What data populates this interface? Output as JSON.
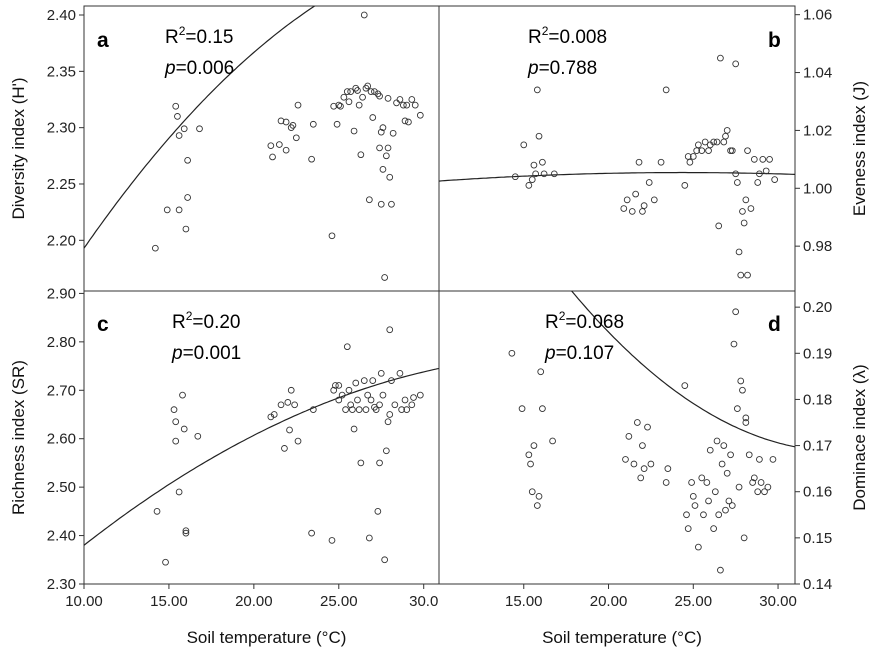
{
  "chart_data": [
    {
      "id": "a",
      "type": "scatter",
      "panel_label": "a",
      "r2_label": "R",
      "r2_sup": "2",
      "r2_value": "=0.15",
      "p_label": "p",
      "p_value": "=0.006",
      "ylabel": "Diversity index (H')",
      "xlabel": "",
      "y_side": "left",
      "xlim": [
        10,
        30.9
      ],
      "ylim": [
        2.155,
        2.408
      ],
      "xticks": [],
      "yticks": [
        {
          "v": 2.2,
          "t": "2.20"
        },
        {
          "v": 2.25,
          "t": "2.25"
        },
        {
          "v": 2.3,
          "t": "2.30"
        },
        {
          "v": 2.35,
          "t": "2.35"
        },
        {
          "v": 2.4,
          "t": "2.40"
        }
      ],
      "fit": [
        2.193,
        0.0217,
        -0.000432
      ],
      "points": [
        [
          14.2,
          2.193
        ],
        [
          14.9,
          2.227
        ],
        [
          15.4,
          2.319
        ],
        [
          15.5,
          2.31
        ],
        [
          15.6,
          2.293
        ],
        [
          15.6,
          2.227
        ],
        [
          15.9,
          2.299
        ],
        [
          16.0,
          2.21
        ],
        [
          16.1,
          2.271
        ],
        [
          16.1,
          2.238
        ],
        [
          16.8,
          2.299
        ],
        [
          21.0,
          2.284
        ],
        [
          21.1,
          2.274
        ],
        [
          21.5,
          2.285
        ],
        [
          21.6,
          2.306
        ],
        [
          21.9,
          2.28
        ],
        [
          21.9,
          2.305
        ],
        [
          22.2,
          2.3
        ],
        [
          22.3,
          2.302
        ],
        [
          22.5,
          2.291
        ],
        [
          22.6,
          2.32
        ],
        [
          23.4,
          2.272
        ],
        [
          23.5,
          2.303
        ],
        [
          24.6,
          2.204
        ],
        [
          24.7,
          2.319
        ],
        [
          24.9,
          2.303
        ],
        [
          25.0,
          2.32
        ],
        [
          25.1,
          2.319
        ],
        [
          25.3,
          2.327
        ],
        [
          25.5,
          2.332
        ],
        [
          25.6,
          2.323
        ],
        [
          25.7,
          2.332
        ],
        [
          25.9,
          2.297
        ],
        [
          26.0,
          2.335
        ],
        [
          26.1,
          2.333
        ],
        [
          26.2,
          2.32
        ],
        [
          26.3,
          2.276
        ],
        [
          26.4,
          2.327
        ],
        [
          26.5,
          2.4
        ],
        [
          26.6,
          2.335
        ],
        [
          26.7,
          2.337
        ],
        [
          26.8,
          2.236
        ],
        [
          26.9,
          2.332
        ],
        [
          27.0,
          2.309
        ],
        [
          27.1,
          2.332
        ],
        [
          27.3,
          2.33
        ],
        [
          27.4,
          2.328
        ],
        [
          27.4,
          2.282
        ],
        [
          27.5,
          2.296
        ],
        [
          27.5,
          2.232
        ],
        [
          27.6,
          2.263
        ],
        [
          27.6,
          2.3
        ],
        [
          27.7,
          2.167
        ],
        [
          27.8,
          2.275
        ],
        [
          27.9,
          2.326
        ],
        [
          27.9,
          2.282
        ],
        [
          28.0,
          2.256
        ],
        [
          28.1,
          2.232
        ],
        [
          28.2,
          2.295
        ],
        [
          28.4,
          2.322
        ],
        [
          28.6,
          2.325
        ],
        [
          28.8,
          2.32
        ],
        [
          28.9,
          2.306
        ],
        [
          29.0,
          2.32
        ],
        [
          29.1,
          2.305
        ],
        [
          29.3,
          2.325
        ],
        [
          29.5,
          2.32
        ],
        [
          29.8,
          2.311
        ]
      ]
    },
    {
      "id": "b",
      "type": "scatter",
      "panel_label": "b",
      "r2_label": "R",
      "r2_sup": "2",
      "r2_value": "=0.008",
      "p_label": "p",
      "p_value": "=0.788",
      "ylabel": "Eveness index (J)",
      "xlabel": "",
      "y_side": "right",
      "xlim": [
        10,
        31
      ],
      "ylim": [
        0.9645,
        1.063
      ],
      "xticks": [],
      "yticks": [
        {
          "v": 0.98,
          "t": "0.98"
        },
        {
          "v": 1.0,
          "t": "1.00"
        },
        {
          "v": 1.02,
          "t": "1.02"
        },
        {
          "v": 1.04,
          "t": "1.04"
        },
        {
          "v": 1.06,
          "t": "1.06"
        }
      ],
      "fit": [
        1.0025,
        0.00041,
        -1.43e-05
      ],
      "points": [
        [
          14.5,
          1.004
        ],
        [
          15.0,
          1.015
        ],
        [
          15.3,
          1.001
        ],
        [
          15.5,
          1.003
        ],
        [
          15.6,
          1.008
        ],
        [
          15.7,
          1.005
        ],
        [
          15.8,
          1.034
        ],
        [
          15.9,
          1.018
        ],
        [
          16.1,
          1.009
        ],
        [
          16.2,
          1.005
        ],
        [
          16.8,
          1.005
        ],
        [
          20.9,
          0.993
        ],
        [
          21.1,
          0.996
        ],
        [
          21.4,
          0.992
        ],
        [
          21.6,
          0.998
        ],
        [
          21.8,
          1.009
        ],
        [
          22.0,
          0.992
        ],
        [
          22.1,
          0.994
        ],
        [
          22.4,
          1.002
        ],
        [
          22.7,
          0.996
        ],
        [
          23.1,
          1.009
        ],
        [
          23.4,
          1.034
        ],
        [
          24.5,
          1.001
        ],
        [
          24.7,
          1.011
        ],
        [
          24.8,
          1.009
        ],
        [
          25.0,
          1.011
        ],
        [
          25.2,
          1.013
        ],
        [
          25.3,
          1.015
        ],
        [
          25.5,
          1.013
        ],
        [
          25.7,
          1.016
        ],
        [
          25.9,
          1.013
        ],
        [
          26.0,
          1.015
        ],
        [
          26.2,
          1.016
        ],
        [
          26.4,
          1.016
        ],
        [
          26.5,
          0.987
        ],
        [
          26.6,
          1.045
        ],
        [
          26.8,
          1.016
        ],
        [
          26.9,
          1.018
        ],
        [
          27.0,
          1.02
        ],
        [
          27.2,
          1.013
        ],
        [
          27.3,
          1.013
        ],
        [
          27.5,
          1.043
        ],
        [
          27.5,
          1.005
        ],
        [
          27.6,
          1.002
        ],
        [
          27.7,
          0.978
        ],
        [
          27.8,
          0.97
        ],
        [
          27.9,
          0.992
        ],
        [
          28.0,
          0.988
        ],
        [
          28.1,
          0.996
        ],
        [
          28.2,
          1.013
        ],
        [
          28.2,
          0.97
        ],
        [
          28.4,
          0.993
        ],
        [
          28.6,
          1.01
        ],
        [
          28.8,
          1.002
        ],
        [
          28.9,
          1.005
        ],
        [
          29.1,
          1.01
        ],
        [
          29.3,
          1.006
        ],
        [
          29.5,
          1.01
        ],
        [
          29.8,
          1.003
        ]
      ]
    },
    {
      "id": "c",
      "type": "scatter",
      "panel_label": "c",
      "r2_label": "R",
      "r2_sup": "2",
      "r2_value": "=0.20",
      "p_label": "p",
      "p_value": "=0.001",
      "ylabel": "Richness index (SR)",
      "xlabel": "Soil temperature (°C)",
      "y_side": "left",
      "xlim": [
        10,
        30.9
      ],
      "ylim": [
        2.3,
        2.905
      ],
      "xticks": [
        {
          "v": 10,
          "t": "10.00"
        },
        {
          "v": 15,
          "t": "15.00"
        },
        {
          "v": 20,
          "t": "20.00"
        },
        {
          "v": 25,
          "t": "25.00"
        },
        {
          "v": 30,
          "t": "30.0"
        }
      ],
      "yticks": [
        {
          "v": 2.3,
          "t": "2.30"
        },
        {
          "v": 2.4,
          "t": "2.40"
        },
        {
          "v": 2.5,
          "t": "2.50"
        },
        {
          "v": 2.6,
          "t": "2.60"
        },
        {
          "v": 2.7,
          "t": "2.70"
        },
        {
          "v": 2.8,
          "t": "2.80"
        },
        {
          "v": 2.9,
          "t": "2.90"
        }
      ],
      "fit": [
        2.38,
        0.0275,
        -0.00048
      ],
      "points": [
        [
          14.3,
          2.45
        ],
        [
          14.8,
          2.345
        ],
        [
          15.3,
          2.66
        ],
        [
          15.4,
          2.595
        ],
        [
          15.4,
          2.635
        ],
        [
          15.6,
          2.49
        ],
        [
          15.8,
          2.69
        ],
        [
          15.9,
          2.62
        ],
        [
          16.0,
          2.41
        ],
        [
          16.0,
          2.405
        ],
        [
          16.7,
          2.605
        ],
        [
          21.0,
          2.645
        ],
        [
          21.2,
          2.65
        ],
        [
          21.6,
          2.67
        ],
        [
          21.8,
          2.58
        ],
        [
          22.0,
          2.675
        ],
        [
          22.1,
          2.618
        ],
        [
          22.2,
          2.7
        ],
        [
          22.4,
          2.67
        ],
        [
          22.6,
          2.595
        ],
        [
          23.4,
          2.405
        ],
        [
          23.5,
          2.66
        ],
        [
          24.6,
          2.39
        ],
        [
          24.7,
          2.7
        ],
        [
          24.8,
          2.71
        ],
        [
          25.0,
          2.68
        ],
        [
          25.0,
          2.71
        ],
        [
          25.2,
          2.69
        ],
        [
          25.4,
          2.66
        ],
        [
          25.5,
          2.79
        ],
        [
          25.6,
          2.7
        ],
        [
          25.7,
          2.67
        ],
        [
          25.8,
          2.66
        ],
        [
          25.9,
          2.62
        ],
        [
          26.0,
          2.715
        ],
        [
          26.1,
          2.68
        ],
        [
          26.2,
          2.66
        ],
        [
          26.3,
          2.55
        ],
        [
          26.5,
          2.72
        ],
        [
          26.6,
          2.66
        ],
        [
          26.7,
          2.69
        ],
        [
          26.8,
          2.395
        ],
        [
          26.9,
          2.68
        ],
        [
          27.0,
          2.72
        ],
        [
          27.1,
          2.665
        ],
        [
          27.2,
          2.66
        ],
        [
          27.3,
          2.45
        ],
        [
          27.4,
          2.55
        ],
        [
          27.4,
          2.67
        ],
        [
          27.5,
          2.735
        ],
        [
          27.6,
          2.69
        ],
        [
          27.7,
          2.35
        ],
        [
          27.8,
          2.575
        ],
        [
          27.9,
          2.635
        ],
        [
          28.0,
          2.825
        ],
        [
          28.0,
          2.65
        ],
        [
          28.1,
          2.72
        ],
        [
          28.3,
          2.67
        ],
        [
          28.6,
          2.735
        ],
        [
          28.7,
          2.66
        ],
        [
          28.9,
          2.68
        ],
        [
          29.0,
          2.66
        ],
        [
          29.3,
          2.67
        ],
        [
          29.8,
          2.69
        ],
        [
          29.4,
          2.685
        ]
      ]
    },
    {
      "id": "d",
      "type": "scatter",
      "panel_label": "d",
      "r2_label": "R",
      "r2_sup": "2",
      "r2_value": "=0.068",
      "p_label": "p",
      "p_value": "=0.107",
      "ylabel": "Dominace index (λ)",
      "xlabel": "Soil temperature (°C)",
      "y_side": "right",
      "xlim": [
        10,
        31
      ],
      "ylim": [
        0.14,
        0.2035
      ],
      "xticks": [
        {
          "v": 15,
          "t": "15.00"
        },
        {
          "v": 20,
          "t": "20.00"
        },
        {
          "v": 25,
          "t": "25.00"
        },
        {
          "v": 30,
          "t": "30.00"
        }
      ],
      "yticks": [
        {
          "v": 0.14,
          "t": "0.14"
        },
        {
          "v": 0.15,
          "t": "0.15"
        },
        {
          "v": 0.16,
          "t": "0.16"
        },
        {
          "v": 0.17,
          "t": "0.17"
        },
        {
          "v": 0.18,
          "t": "0.18"
        },
        {
          "v": 0.19,
          "t": "0.19"
        },
        {
          "v": 0.2,
          "t": "0.20"
        }
      ],
      "fit": [
        0.2464,
        -0.00657,
        0.000139
      ],
      "points": [
        [
          14.3,
          0.19
        ],
        [
          14.9,
          0.178
        ],
        [
          15.3,
          0.168
        ],
        [
          15.4,
          0.166
        ],
        [
          15.5,
          0.16
        ],
        [
          15.6,
          0.17
        ],
        [
          15.8,
          0.157
        ],
        [
          15.9,
          0.159
        ],
        [
          16.0,
          0.186
        ],
        [
          16.1,
          0.178
        ],
        [
          16.7,
          0.171
        ],
        [
          21.0,
          0.167
        ],
        [
          21.2,
          0.172
        ],
        [
          21.5,
          0.166
        ],
        [
          21.7,
          0.175
        ],
        [
          21.9,
          0.163
        ],
        [
          22.0,
          0.17
        ],
        [
          22.1,
          0.165
        ],
        [
          22.3,
          0.174
        ],
        [
          22.5,
          0.166
        ],
        [
          23.4,
          0.162
        ],
        [
          23.5,
          0.165
        ],
        [
          24.5,
          0.183
        ],
        [
          24.6,
          0.155
        ],
        [
          24.7,
          0.152
        ],
        [
          24.9,
          0.162
        ],
        [
          25.0,
          0.159
        ],
        [
          25.1,
          0.157
        ],
        [
          25.3,
          0.148
        ],
        [
          25.5,
          0.163
        ],
        [
          25.6,
          0.155
        ],
        [
          25.8,
          0.162
        ],
        [
          25.9,
          0.158
        ],
        [
          26.0,
          0.169
        ],
        [
          26.2,
          0.152
        ],
        [
          26.3,
          0.16
        ],
        [
          26.4,
          0.171
        ],
        [
          26.5,
          0.155
        ],
        [
          26.6,
          0.143
        ],
        [
          26.7,
          0.166
        ],
        [
          26.8,
          0.17
        ],
        [
          26.9,
          0.156
        ],
        [
          27.0,
          0.164
        ],
        [
          27.1,
          0.158
        ],
        [
          27.2,
          0.168
        ],
        [
          27.3,
          0.157
        ],
        [
          27.4,
          0.192
        ],
        [
          27.5,
          0.199
        ],
        [
          27.6,
          0.178
        ],
        [
          27.7,
          0.161
        ],
        [
          27.8,
          0.184
        ],
        [
          27.9,
          0.182
        ],
        [
          28.0,
          0.15
        ],
        [
          28.1,
          0.175
        ],
        [
          28.1,
          0.176
        ],
        [
          28.3,
          0.168
        ],
        [
          28.5,
          0.162
        ],
        [
          28.6,
          0.163
        ],
        [
          28.8,
          0.16
        ],
        [
          28.9,
          0.167
        ],
        [
          29.0,
          0.162
        ],
        [
          29.2,
          0.16
        ],
        [
          29.4,
          0.161
        ],
        [
          29.7,
          0.167
        ]
      ]
    }
  ]
}
